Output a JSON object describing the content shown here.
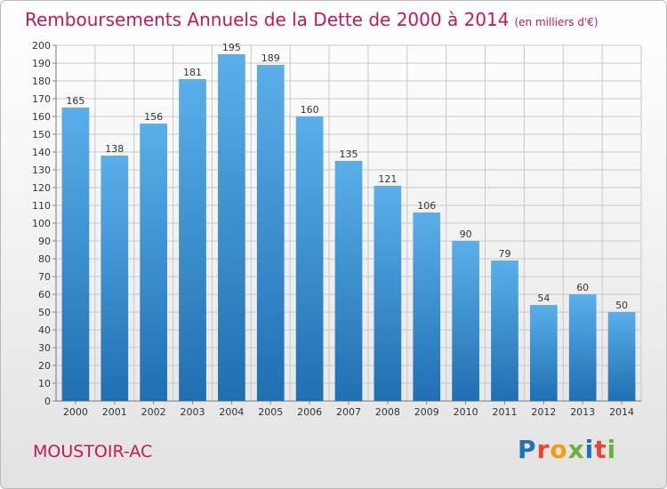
{
  "header": {
    "title": "Remboursements Annuels de la Dette de 2000 à 2014",
    "unit": "(en milliers d'€)"
  },
  "footer": {
    "commune": "MOUSTOIR-AC",
    "logo_text": "Proxiti"
  },
  "colors": {
    "title": "#c2185b",
    "bar_top": "#5aafea",
    "bar_bottom": "#1f6fb2",
    "grid": "#c8c8c8"
  },
  "chart_data": {
    "type": "bar",
    "title": "Remboursements Annuels de la Dette de 2000 à 2014",
    "xlabel": "",
    "ylabel": "",
    "categories": [
      "2000",
      "2001",
      "2002",
      "2003",
      "2004",
      "2005",
      "2006",
      "2007",
      "2008",
      "2009",
      "2010",
      "2011",
      "2012",
      "2013",
      "2014"
    ],
    "values": [
      165,
      138,
      156,
      181,
      195,
      189,
      160,
      135,
      121,
      106,
      90,
      79,
      54,
      60,
      50
    ],
    "ylim": [
      0,
      200
    ],
    "ytick_step": 10,
    "grid": true,
    "data_labels": true
  }
}
